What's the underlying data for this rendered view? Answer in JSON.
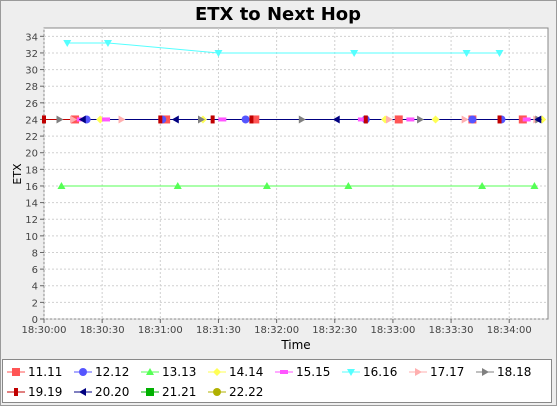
{
  "chart_data": {
    "type": "line",
    "title": "ETX to Next Hop",
    "xlabel": "Time",
    "ylabel": "ETX",
    "ylim": [
      0,
      35
    ],
    "yticks": [
      0,
      2,
      4,
      6,
      8,
      10,
      12,
      14,
      16,
      18,
      20,
      22,
      24,
      26,
      28,
      30,
      32,
      34
    ],
    "xlim": [
      "18:30:00",
      "18:34:20"
    ],
    "xticks": [
      "18:30:00",
      "18:30:30",
      "18:31:00",
      "18:31:30",
      "18:32:00",
      "18:32:30",
      "18:33:00",
      "18:33:30",
      "18:34:00"
    ],
    "grid": true,
    "legend": "bottom",
    "series": [
      {
        "name": "11.11",
        "color": "#ff5555",
        "marker": "square",
        "x": [
          "18:30:16",
          "18:31:03",
          "18:31:49",
          "18:33:03",
          "18:33:41",
          "18:34:07"
        ],
        "values": [
          24,
          24,
          24,
          24,
          24,
          24
        ]
      },
      {
        "name": "12.12",
        "color": "#5555ff",
        "marker": "circle",
        "x": [
          "18:30:22",
          "18:31:01",
          "18:31:44",
          "18:32:46",
          "18:33:41",
          "18:33:56"
        ],
        "values": [
          24,
          24,
          24,
          24,
          24,
          24
        ]
      },
      {
        "name": "13.13",
        "color": "#55ff55",
        "marker": "triangle-up",
        "x": [
          "18:30:09",
          "18:31:09",
          "18:31:55",
          "18:32:37",
          "18:33:46",
          "18:34:13"
        ],
        "values": [
          16,
          16,
          16,
          16,
          16,
          16
        ]
      },
      {
        "name": "14.14",
        "color": "#ffff55",
        "marker": "diamond",
        "x": [
          "18:30:29",
          "18:31:22",
          "18:32:56",
          "18:33:22",
          "18:34:17"
        ],
        "values": [
          24,
          24,
          24,
          24,
          24
        ]
      },
      {
        "name": "15.15",
        "color": "#ff55ff",
        "marker": "rect-h",
        "x": [
          "18:30:19",
          "18:30:32",
          "18:31:32",
          "18:32:44",
          "18:33:09",
          "18:34:09"
        ],
        "values": [
          24,
          24,
          24,
          24,
          24,
          24
        ]
      },
      {
        "name": "16.16",
        "color": "#55ffff",
        "marker": "triangle-down",
        "x": [
          "18:30:12",
          "18:30:33",
          "18:31:30",
          "18:32:40",
          "18:33:38",
          "18:33:55"
        ],
        "values": [
          33.2,
          33.2,
          32,
          32,
          32,
          32
        ]
      },
      {
        "name": "17.17",
        "color": "#ffafaf",
        "marker": "triangle-right",
        "x": [
          "18:30:15",
          "18:30:40",
          "18:32:58",
          "18:33:37",
          "18:34:14"
        ],
        "values": [
          24,
          24,
          24,
          24,
          24
        ]
      },
      {
        "name": "18.18",
        "color": "#808080",
        "marker": "triangle-right",
        "x": [
          "18:30:08",
          "18:31:21",
          "18:32:13",
          "18:33:14",
          "18:34:15"
        ],
        "values": [
          24,
          24,
          24,
          24,
          24
        ]
      },
      {
        "name": "19.19",
        "color": "#c00000",
        "marker": "bar-v",
        "x": [
          "18:30:00",
          "18:31:00",
          "18:31:27",
          "18:31:47",
          "18:32:46",
          "18:33:55"
        ],
        "values": [
          24,
          24,
          24,
          24,
          24,
          24
        ]
      },
      {
        "name": "20.20",
        "color": "#000080",
        "marker": "triangle-left",
        "x": [
          "18:30:20",
          "18:31:08",
          "18:32:31",
          "18:34:15"
        ],
        "values": [
          24,
          24,
          24,
          24
        ]
      },
      {
        "name": "21.21",
        "color": "#00b000",
        "marker": "square",
        "x": [],
        "values": []
      },
      {
        "name": "22.22",
        "color": "#b0b000",
        "marker": "circle",
        "x": [],
        "values": []
      }
    ]
  }
}
